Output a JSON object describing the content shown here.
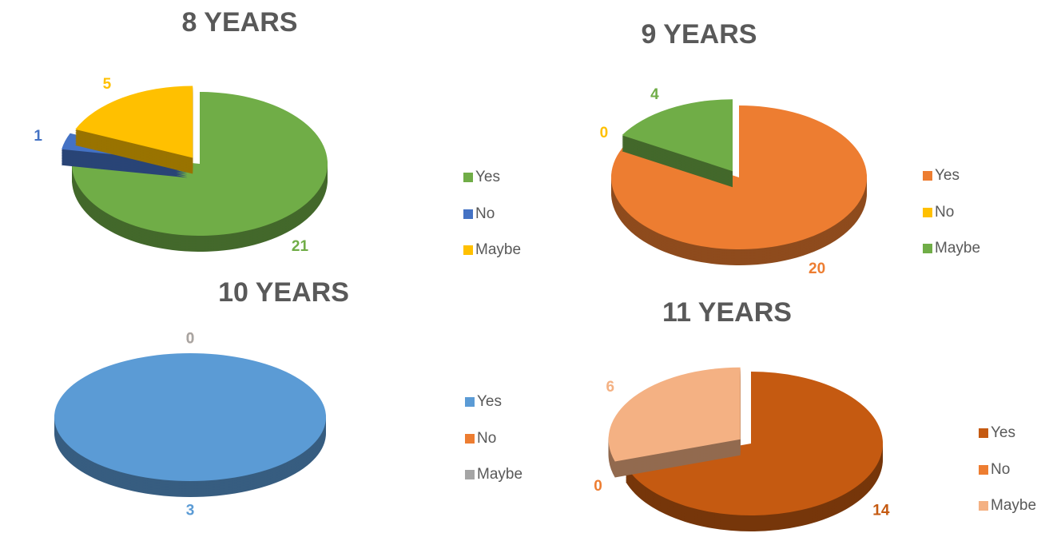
{
  "chart_data": [
    {
      "type": "pie",
      "title": "8 YEARS",
      "categories": [
        "Yes",
        "No",
        "Maybe"
      ],
      "values": [
        21,
        1,
        5
      ],
      "colors": [
        "#70ad47",
        "#4472c4",
        "#ffc000"
      ]
    },
    {
      "type": "pie",
      "title": "9 YEARS",
      "categories": [
        "Yes",
        "No",
        "Maybe"
      ],
      "values": [
        20,
        0,
        4
      ],
      "colors": [
        "#ed7d31",
        "#ffc000",
        "#70ad47"
      ]
    },
    {
      "type": "pie",
      "title": "10 YEARS",
      "categories": [
        "Yes",
        "No",
        "Maybe"
      ],
      "values": [
        3,
        0,
        0
      ],
      "colors": [
        "#5b9bd5",
        "#ed7d31",
        "#a5a5a5"
      ]
    },
    {
      "type": "pie",
      "title": "11 YEARS",
      "categories": [
        "Yes",
        "No",
        "Maybe"
      ],
      "values": [
        14,
        0,
        6
      ],
      "colors": [
        "#c55a11",
        "#ed7d31",
        "#f4b183"
      ]
    }
  ]
}
